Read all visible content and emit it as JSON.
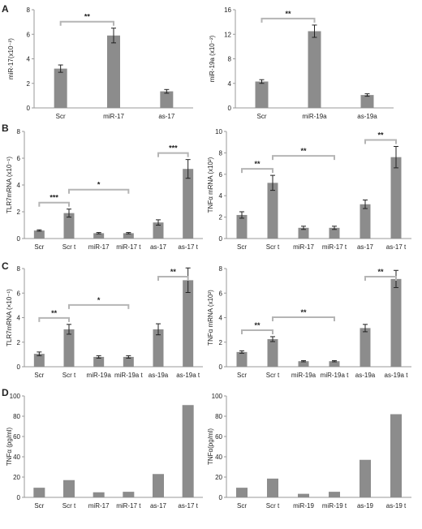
{
  "panel_letters": [
    "A",
    "B",
    "C",
    "D"
  ],
  "chart_data": [
    {
      "type": "bar",
      "panel": "A",
      "categories": [
        "Scr",
        "miR-17",
        "as-17"
      ],
      "values": [
        3.2,
        5.9,
        1.35
      ],
      "errors": [
        0.3,
        0.6,
        0.15
      ],
      "ylabel": "miR-17(x10⁻²)",
      "ylim": [
        0,
        8
      ],
      "yticks": [
        0,
        2,
        4,
        6,
        8
      ],
      "significance": [
        {
          "from": 0,
          "to": 1,
          "label": "**"
        }
      ]
    },
    {
      "type": "bar",
      "panel": "A",
      "categories": [
        "Scr",
        "miR-19a",
        "as-19a"
      ],
      "values": [
        4.3,
        12.5,
        2.1
      ],
      "errors": [
        0.3,
        1.0,
        0.2
      ],
      "ylabel": "miR-19a (x10⁻²)",
      "ylim": [
        0,
        16
      ],
      "yticks": [
        0,
        4,
        8,
        12,
        16
      ],
      "significance": [
        {
          "from": 0,
          "to": 1,
          "label": "**"
        }
      ]
    },
    {
      "type": "bar",
      "panel": "B",
      "categories": [
        "Scr",
        "Scr t",
        "miR-17",
        "miR-17 t",
        "as-17",
        "as-17 t"
      ],
      "values": [
        0.6,
        1.9,
        0.4,
        0.4,
        1.2,
        5.2
      ],
      "errors": [
        0.05,
        0.3,
        0.05,
        0.05,
        0.2,
        0.7
      ],
      "ylabel": "TLR7mRNA (x10⁻¹)",
      "ylim": [
        0,
        8
      ],
      "yticks": [
        0,
        2,
        4,
        6,
        8
      ],
      "significance": [
        {
          "from": 0,
          "to": 1,
          "label": "***"
        },
        {
          "from": 1,
          "to": 3,
          "label": "*"
        },
        {
          "from": 4,
          "to": 5,
          "label": "***"
        }
      ]
    },
    {
      "type": "bar",
      "panel": "B",
      "categories": [
        "Scr",
        "Scr t",
        "miR-17",
        "miR-17 t",
        "as-17",
        "as-17 t"
      ],
      "values": [
        2.2,
        5.2,
        1.0,
        1.0,
        3.2,
        7.6
      ],
      "errors": [
        0.3,
        0.7,
        0.15,
        0.15,
        0.4,
        1.0
      ],
      "ylabel": "TNFα mRNA (x10²)",
      "ylim": [
        0,
        10
      ],
      "yticks": [
        0,
        2,
        4,
        6,
        8,
        10
      ],
      "significance": [
        {
          "from": 0,
          "to": 1,
          "label": "**"
        },
        {
          "from": 1,
          "to": 3,
          "label": "**"
        },
        {
          "from": 4,
          "to": 5,
          "label": "**"
        }
      ]
    },
    {
      "type": "bar",
      "panel": "C",
      "categories": [
        "Scr",
        "Scr t",
        "miR-19a",
        "miR-19a t",
        "as-19a",
        "as-19a t"
      ],
      "values": [
        1.05,
        3.05,
        0.8,
        0.8,
        3.05,
        7.05
      ],
      "errors": [
        0.15,
        0.4,
        0.1,
        0.1,
        0.45,
        1.0
      ],
      "ylabel": "TLR7mRNA (×10⁻¹)",
      "ylim": [
        0,
        8
      ],
      "yticks": [
        0,
        2,
        4,
        6,
        8
      ],
      "significance": [
        {
          "from": 0,
          "to": 1,
          "label": "**"
        },
        {
          "from": 1,
          "to": 3,
          "label": "*"
        },
        {
          "from": 4,
          "to": 5,
          "label": "**"
        }
      ]
    },
    {
      "type": "bar",
      "panel": "C",
      "categories": [
        "Scr",
        "Scr t",
        "miR-19a",
        "miR-19a t",
        "as-19a",
        "as-19a t"
      ],
      "values": [
        1.2,
        2.25,
        0.45,
        0.45,
        3.15,
        7.15
      ],
      "errors": [
        0.1,
        0.2,
        0.05,
        0.05,
        0.3,
        0.7
      ],
      "ylabel": "TNFα mRNA (x10²)",
      "ylim": [
        0,
        8
      ],
      "yticks": [
        0,
        2,
        4,
        6,
        8
      ],
      "significance": [
        {
          "from": 0,
          "to": 1,
          "label": "**"
        },
        {
          "from": 1,
          "to": 3,
          "label": "**"
        },
        {
          "from": 4,
          "to": 5,
          "label": "**"
        }
      ]
    },
    {
      "type": "bar",
      "panel": "D",
      "categories": [
        "Scr",
        "Scr t",
        "miR-17",
        "miR-17 t",
        "as-17",
        "as-17 t"
      ],
      "values": [
        9.5,
        17,
        5,
        5.5,
        23,
        91
      ],
      "ylabel": "TNFα (pg/ml)",
      "ylim": [
        0,
        100
      ],
      "yticks": [
        0,
        20,
        40,
        60,
        80,
        100
      ],
      "significance": []
    },
    {
      "type": "bar",
      "panel": "D",
      "categories": [
        "Scr",
        "Scr t",
        "miR-19",
        "miR-19 t",
        "as-19",
        "as-19 t"
      ],
      "values": [
        9.5,
        18.5,
        3.5,
        5.5,
        37,
        82
      ],
      "ylabel": "TNFα(pg/ml)",
      "ylim": [
        0,
        100
      ],
      "yticks": [
        0,
        20,
        40,
        60,
        80,
        100
      ],
      "significance": []
    }
  ],
  "colors": {
    "bar": "#8c8c8c",
    "axis": "#9a9a9a",
    "bracket": "#b5b5b5",
    "text": "#222222"
  }
}
